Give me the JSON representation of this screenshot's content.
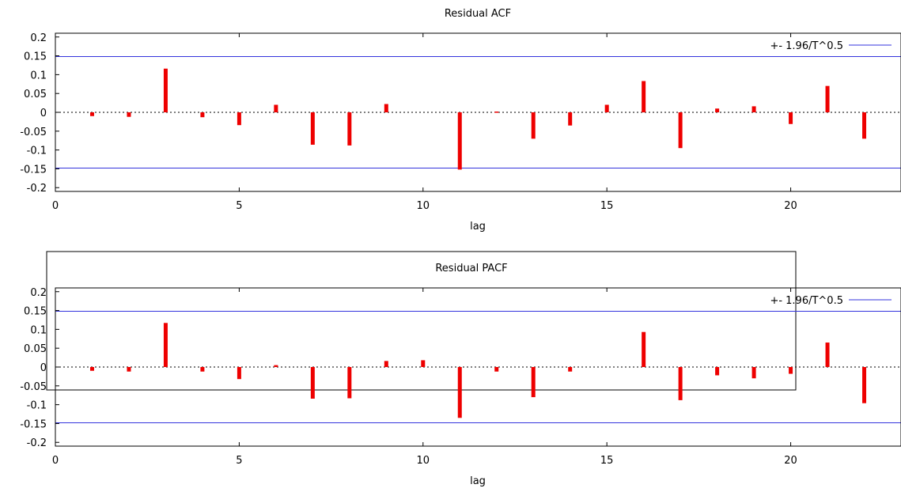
{
  "chart_data": [
    {
      "type": "bar",
      "title": "Residual ACF",
      "xlabel": "lag",
      "ylabel": "",
      "xlim": [
        0,
        23
      ],
      "ylim": [
        -0.21,
        0.21
      ],
      "xticks": [
        "0",
        "5",
        "10",
        "15",
        "20"
      ],
      "yticks": [
        "0.2",
        "0.15",
        "0.1",
        "0.05",
        "0",
        "-0.05",
        "-0.1",
        "-0.15",
        "-0.2"
      ],
      "legend": {
        "label": "+- 1.96/T^0.5",
        "position": "top-right",
        "color": "#3333dd"
      },
      "bound": 0.148,
      "bar_color": "#ee0000",
      "lags": [
        1,
        2,
        3,
        4,
        5,
        6,
        7,
        8,
        9,
        10,
        11,
        12,
        13,
        14,
        15,
        16,
        17,
        18,
        19,
        20,
        21,
        22
      ],
      "values": [
        -0.01,
        -0.012,
        0.116,
        -0.013,
        -0.034,
        0.02,
        -0.086,
        -0.088,
        0.022,
        0.0,
        -0.152,
        0.002,
        -0.07,
        -0.035,
        0.02,
        0.083,
        -0.095,
        0.01,
        0.016,
        -0.031,
        0.07,
        -0.07
      ]
    },
    {
      "type": "bar",
      "title": "Residual PACF",
      "xlabel": "lag",
      "ylabel": "",
      "xlim": [
        0,
        23
      ],
      "ylim": [
        -0.21,
        0.21
      ],
      "xticks": [
        "0",
        "5",
        "10",
        "15",
        "20"
      ],
      "yticks": [
        "0.2",
        "0.15",
        "0.1",
        "0.05",
        "0",
        "-0.05",
        "-0.1",
        "-0.15",
        "-0.2"
      ],
      "legend": {
        "label": "+- 1.96/T^0.5",
        "position": "top-right",
        "color": "#3333dd"
      },
      "bound": 0.148,
      "bar_color": "#ee0000",
      "lags": [
        1,
        2,
        3,
        4,
        5,
        6,
        7,
        8,
        9,
        10,
        11,
        12,
        13,
        14,
        15,
        16,
        17,
        18,
        19,
        20,
        21,
        22
      ],
      "values": [
        -0.01,
        -0.012,
        0.117,
        -0.012,
        -0.032,
        0.005,
        -0.084,
        -0.083,
        0.016,
        0.018,
        -0.135,
        -0.012,
        -0.08,
        -0.012,
        0.0,
        0.093,
        -0.088,
        -0.022,
        -0.03,
        -0.018,
        0.065,
        -0.096
      ]
    }
  ]
}
